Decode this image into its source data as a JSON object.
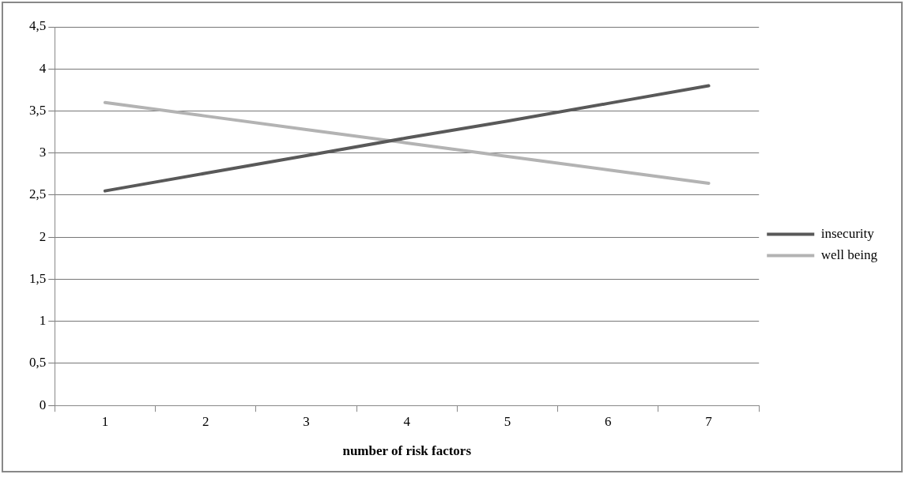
{
  "chart_data": {
    "type": "line",
    "xlabel": "number of risk factors",
    "categories": [
      "1",
      "2",
      "3",
      "4",
      "5",
      "6",
      "7"
    ],
    "series": [
      {
        "name": "insecurity",
        "color": "#595959",
        "values": [
          2.55,
          2.76,
          2.97,
          3.18,
          3.38,
          3.59,
          3.8
        ]
      },
      {
        "name": "well being",
        "color": "#b3b3b3",
        "values": [
          3.6,
          3.44,
          3.28,
          3.12,
          2.96,
          2.8,
          2.64
        ]
      }
    ],
    "ylim": [
      0,
      4.5
    ],
    "yticks": [
      {
        "value": 0,
        "label": "0"
      },
      {
        "value": 0.5,
        "label": "0,5"
      },
      {
        "value": 1,
        "label": "1"
      },
      {
        "value": 1.5,
        "label": "1,5"
      },
      {
        "value": 2,
        "label": "2"
      },
      {
        "value": 2.5,
        "label": "2,5"
      },
      {
        "value": 3,
        "label": "3"
      },
      {
        "value": 3.5,
        "label": "3,5"
      },
      {
        "value": 4,
        "label": "4"
      },
      {
        "value": 4.5,
        "label": "4,5"
      }
    ],
    "grid": "y",
    "legend": "right",
    "marker": "none",
    "line_style": "solid"
  }
}
